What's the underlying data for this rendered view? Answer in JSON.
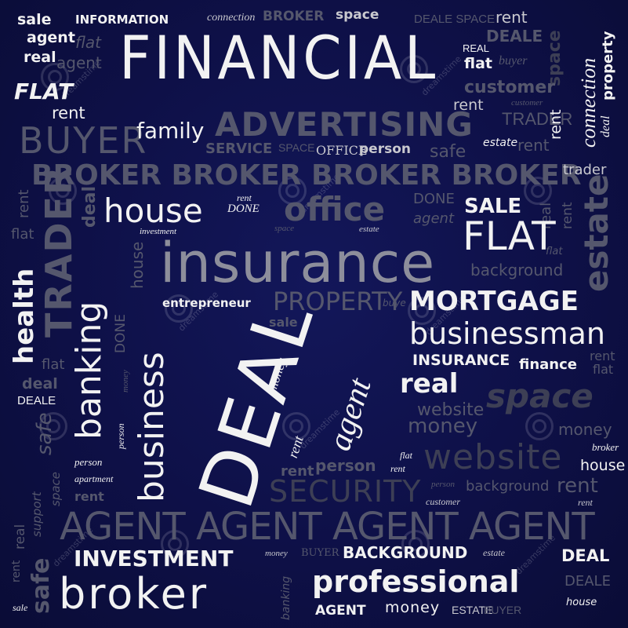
{
  "words": {
    "sale_tl": "sale",
    "information": "INFORMATION",
    "connection_top": "connection",
    "broker_top": "BROKER",
    "space_top": "space",
    "deale_space": "DEALE SPACE",
    "rent_tr": "rent",
    "agent_1": "agent",
    "agent_2": "agent",
    "real_1": "real",
    "flat_1": "flat",
    "financial": "FINANCIAL",
    "real_2": "REAL",
    "flat_2": "flat",
    "buyer_1": "buyer",
    "deale_1": "DEALE",
    "space_vert": "space",
    "connection_vert": "connection",
    "property_vert": "property",
    "flat_3": "FLAT",
    "customer_1": "customer",
    "rent_2": "rent",
    "customer_2": "customer",
    "trader_1": "TRADER",
    "rent_vert_1": "rent",
    "deal_vert": "deal",
    "rent_3": "rent",
    "advertising": "ADVERTISING",
    "buyer_2": "BUYER",
    "family": "family",
    "service": "SERVICE",
    "space_2": "SPACE",
    "office_1": "OFFICE",
    "person_1": "person",
    "safe_1": "safe",
    "estate_1": "estate",
    "rent_4": "rent",
    "broker_row": "BROKER BROKER BROKER BROKER",
    "trader_2": "trader",
    "rent_vert_2": "rent",
    "trader_vert": "TRADER",
    "deal_vert_2": "deal",
    "house_1": "house",
    "rent_5": "rent",
    "done_1": "DONE",
    "office_2": "office",
    "done_2": "DONE",
    "agent_3": "agent",
    "sale_1": "SALE",
    "real_vert": "real",
    "estate_vert": "estate",
    "investment_small": "investment",
    "space_3": "space",
    "estate_2": "estate",
    "rent_vert_3": "rent",
    "flat_4": "flat",
    "flat_5": "FLAT",
    "flat_6": "flat",
    "banking_vert": "banking",
    "house_vert": "house",
    "health_vert": "health",
    "insurance_1": "insurance",
    "background_1": "background",
    "entrepreneur": "entrepreneur",
    "property_2": "PROPERTY",
    "buyer_3": "buye",
    "mortgage": "MORTGAGE",
    "sale_2": "sale",
    "done_vert": "DONE",
    "business_vert": "business",
    "deal_big": "DEAL",
    "money_vert": "money",
    "rent_vert_4": "rent",
    "agent_vert": "agent",
    "businessman": "businessman",
    "insurance_2": "INSURANCE",
    "finance": "finance",
    "rent_6": "rent",
    "flat_7": "flat",
    "real_3": "real",
    "deal_2": "deal",
    "space_4": "space",
    "deale_2": "DEALE",
    "safe_vert": "safe",
    "website_1": "website",
    "money_2": "money",
    "money_3": "money",
    "person_vert": "person",
    "broker_2": "broker",
    "person_2": "person",
    "person_3": "person",
    "flat_8": "flat",
    "rent_7": "rent",
    "website_2": "website",
    "house_2": "house",
    "apartment": "apartment",
    "rent_8": "rent",
    "security": "SECURITY",
    "person_4": "person",
    "background_2": "background",
    "rent_9": "rent",
    "space_vert_2": "space",
    "support_vert": "support",
    "customer_3": "customer",
    "rent_10": "rent",
    "agent_row": "AGENT AGENT AGENT AGENT",
    "real_vert_2": "real",
    "investment": "INVESTMENT",
    "money_4": "money",
    "buyer_4": "BUYER",
    "background_3": "BACKGROUND",
    "estate_3": "estate",
    "deal_3": "DEAL",
    "rent_vert_5": "rent",
    "safe_vert_2": "safe",
    "broker_big": "broker",
    "banking_vert_2": "banking",
    "professional": "professional",
    "deale_3": "DEALE",
    "sale_3": "sale",
    "agent_4": "AGENT",
    "money_5": "money",
    "estate_4": "ESTATE",
    "buyer_5": "BUYER",
    "house_3": "house"
  },
  "watermark": "dreamstime"
}
